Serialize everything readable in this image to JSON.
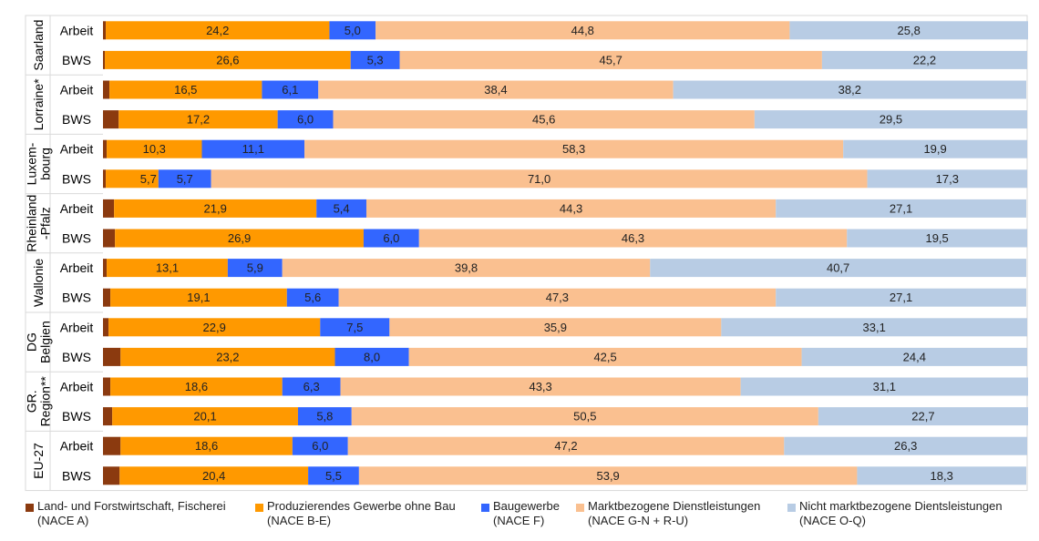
{
  "chart_data": {
    "type": "bar",
    "orientation": "horizontal",
    "stacked": true,
    "percent": true,
    "xlim": [
      0,
      100
    ],
    "grid": false,
    "legend_position": "bottom",
    "groups": [
      {
        "label": [
          "Saarland"
        ],
        "rows": [
          {
            "label": "Arbeit",
            "values": [
              0.3,
              24.2,
              5.0,
              44.8,
              25.8
            ]
          },
          {
            "label": "BWS",
            "values": [
              0.2,
              26.6,
              5.3,
              45.7,
              22.2
            ]
          }
        ]
      },
      {
        "label": [
          "Lorraine*"
        ],
        "rows": [
          {
            "label": "Arbeit",
            "values": [
              0.7,
              16.5,
              6.1,
              38.4,
              38.2
            ]
          },
          {
            "label": "BWS",
            "values": [
              1.7,
              17.2,
              6.0,
              45.6,
              29.5
            ]
          }
        ]
      },
      {
        "label": [
          "Luxem-",
          "bourg"
        ],
        "rows": [
          {
            "label": "Arbeit",
            "values": [
              0.4,
              10.3,
              11.1,
              58.3,
              19.9
            ]
          },
          {
            "label": "BWS",
            "values": [
              0.3,
              5.7,
              5.7,
              71.0,
              17.3
            ]
          }
        ]
      },
      {
        "label": [
          "Rheinland",
          "-Pfalz"
        ],
        "rows": [
          {
            "label": "Arbeit",
            "values": [
              1.2,
              21.9,
              5.4,
              44.3,
              27.1
            ]
          },
          {
            "label": "BWS",
            "values": [
              1.3,
              26.9,
              6.0,
              46.3,
              19.5
            ]
          }
        ]
      },
      {
        "label": [
          "Wallonie"
        ],
        "rows": [
          {
            "label": "Arbeit",
            "values": [
              0.4,
              13.1,
              5.9,
              39.8,
              40.7
            ]
          },
          {
            "label": "BWS",
            "values": [
              0.8,
              19.1,
              5.6,
              47.3,
              27.1
            ]
          }
        ]
      },
      {
        "label": [
          "DG",
          "Belgien"
        ],
        "rows": [
          {
            "label": "Arbeit",
            "values": [
              0.6,
              22.9,
              7.5,
              35.9,
              33.1
            ]
          },
          {
            "label": "BWS",
            "values": [
              1.9,
              23.2,
              8.0,
              42.5,
              24.4
            ]
          }
        ]
      },
      {
        "label": [
          "GR.",
          "Region**"
        ],
        "rows": [
          {
            "label": "Arbeit",
            "values": [
              0.8,
              18.6,
              6.3,
              43.3,
              31.1
            ]
          },
          {
            "label": "BWS",
            "values": [
              1.0,
              20.1,
              5.8,
              50.5,
              22.7
            ]
          }
        ]
      },
      {
        "label": [
          "EU-27"
        ],
        "rows": [
          {
            "label": "Arbeit",
            "values": [
              1.9,
              18.6,
              6.0,
              47.2,
              26.3
            ]
          },
          {
            "label": "BWS",
            "values": [
              1.8,
              20.4,
              5.5,
              53.9,
              18.3
            ]
          }
        ]
      }
    ],
    "series": [
      {
        "name": [
          "Land- und Forstwirtschaft, Fischerei",
          "(NACE A)"
        ],
        "color": "#8B3A0F"
      },
      {
        "name": [
          "Produzierendes Gewerbe ohne Bau",
          "(NACE B-E)"
        ],
        "color": "#FF9900"
      },
      {
        "name": [
          "Baugewerbe",
          "(NACE F)"
        ],
        "color": "#3366FF"
      },
      {
        "name": [
          "Marktbezogene Dienstleistungen",
          "(NACE G-N + R-U)"
        ],
        "color": "#FAC090"
      },
      {
        "name": [
          "Nicht marktbezogene Dientsleistungen",
          "(NACE O-Q)"
        ],
        "color": "#B8CCE4"
      }
    ]
  }
}
